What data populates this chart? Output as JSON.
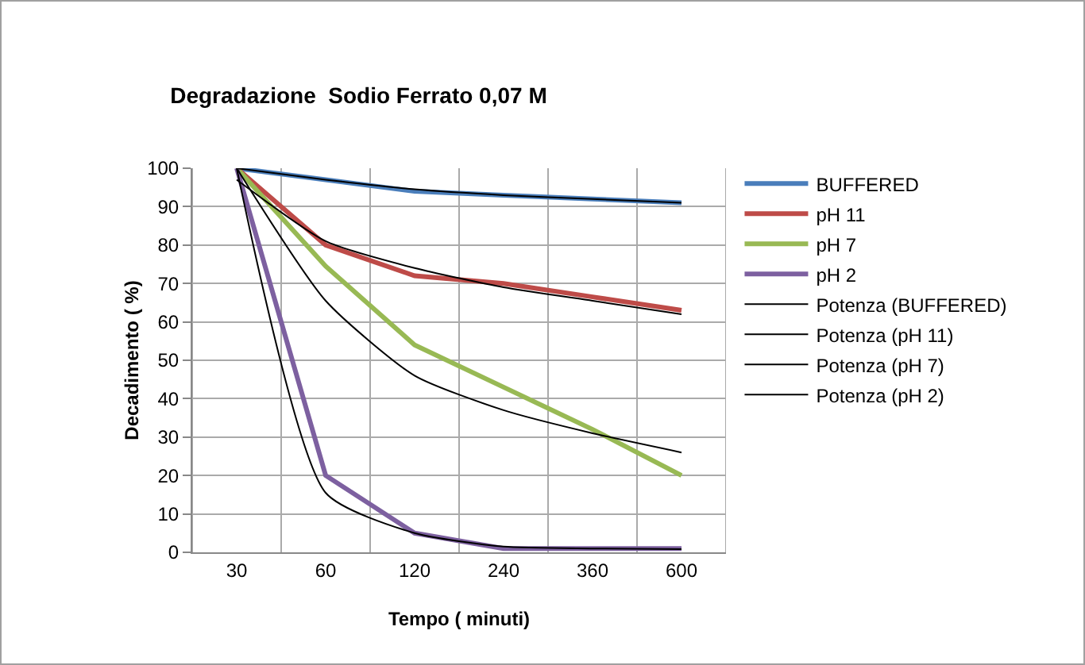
{
  "chart_data": {
    "type": "line",
    "title": "Degradazione  Sodio Ferrato 0,07 M",
    "xlabel": "Tempo ( minuti)",
    "ylabel": "Decadimento ( %)",
    "categories": [
      "30",
      "60",
      "120",
      "240",
      "360",
      "600"
    ],
    "series": [
      {
        "name": "BUFFERED",
        "color": "#4a7ebb",
        "values": [
          100,
          97,
          94,
          93,
          92,
          91
        ]
      },
      {
        "name": "pH 11",
        "color": "#be4b48",
        "values": [
          100,
          80,
          72,
          70,
          66.5,
          63
        ]
      },
      {
        "name": "pH 7",
        "color": "#98b954",
        "values": [
          100,
          74.5,
          54,
          43,
          32,
          20
        ]
      },
      {
        "name": "pH 2",
        "color": "#7d60a0",
        "values": [
          100,
          20,
          5,
          1,
          1,
          1
        ]
      },
      {
        "name": "Potenza (BUFFERED)",
        "type": "line",
        "color": "#000000",
        "values": [
          100,
          97,
          94.5,
          93,
          92,
          91
        ]
      },
      {
        "name": "Potenza (pH 11)",
        "type": "line",
        "color": "#000000",
        "values": [
          97,
          81,
          74,
          69,
          65.5,
          62
        ]
      },
      {
        "name": "Potenza (pH 7)",
        "type": "line",
        "color": "#000000",
        "values": [
          100,
          65.5,
          46,
          37,
          31,
          26
        ]
      },
      {
        "name": "Potenza (pH 2)",
        "type": "line",
        "color": "#000000",
        "values": [
          100,
          15.5,
          5,
          1.5,
          1,
          0.8
        ]
      }
    ],
    "ylim": [
      0,
      100
    ],
    "yticks": [
      0,
      10,
      20,
      30,
      40,
      50,
      60,
      70,
      80,
      90,
      100
    ],
    "grid": true,
    "legend": "right",
    "marker": "none",
    "line_style": "solid"
  }
}
